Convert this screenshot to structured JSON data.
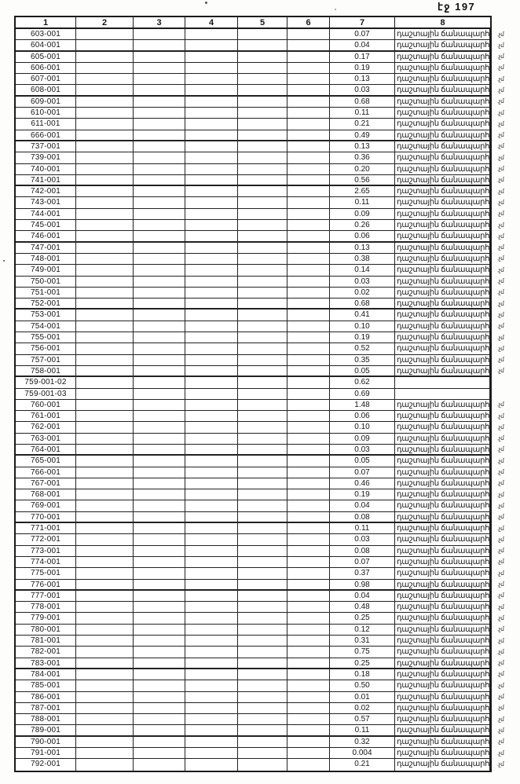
{
  "page": {
    "number_label": "էջ 197"
  },
  "table": {
    "headers": [
      "1",
      "2",
      "3",
      "4",
      "5",
      "6",
      "7",
      "8"
    ],
    "land_use_text": "դաշտային ճանապարհ",
    "margin_note_text": ".չմ",
    "rows": [
      {
        "id": "603-001",
        "value": "0.07",
        "label": "դաշտային ճանապարհ",
        "note": ".չմ"
      },
      {
        "id": "604-001",
        "value": "0.04",
        "label": "դաշտային ճանապարհ",
        "note": ".չմ"
      },
      {
        "id": "605-001",
        "value": "0.17",
        "label": "դաշտային ճանապարհ",
        "note": ".չմ"
      },
      {
        "id": "606-001",
        "value": "0.19",
        "label": "դաշտային ճանապարհ",
        "note": ".չմ"
      },
      {
        "id": "607-001",
        "value": "0.13",
        "label": "դաշտային ճանապարհ",
        "note": ".չմ"
      },
      {
        "id": "608-001",
        "value": "0.03",
        "label": "դաշտային ճանապարհ",
        "note": ".չմ"
      },
      {
        "id": "609-001",
        "value": "0.68",
        "label": "դաշտային ճանապարհ",
        "note": ".չմ"
      },
      {
        "id": "610-001",
        "value": "0.11",
        "label": "դաշտային ճանապարհ",
        "note": ".չմ"
      },
      {
        "id": "611-001",
        "value": "0.21",
        "label": "դաշտային ճանապարհ",
        "note": ".չմ"
      },
      {
        "id": "666-001",
        "value": "0.49",
        "label": "դաշտային ճանապարհ",
        "note": ".չմ"
      },
      {
        "id": "737-001",
        "value": "0.13",
        "label": "դաշտային ճանապարհ",
        "note": ".չմ"
      },
      {
        "id": "739-001",
        "value": "0.36",
        "label": "դաշտային ճանապարհ",
        "note": ".չմ"
      },
      {
        "id": "740-001",
        "value": "0.20",
        "label": "դաշտային ճանապարհ",
        "note": ".չմ"
      },
      {
        "id": "741-001",
        "value": "0.56",
        "label": "դաշտային ճանապարհ",
        "note": ".չմ"
      },
      {
        "id": "742-001",
        "value": "2.65",
        "label": "դաշտային ճանապարհ",
        "note": ".չմ"
      },
      {
        "id": "743-001",
        "value": "0.11",
        "label": "դաշտային ճանապարհ",
        "note": ".չմ"
      },
      {
        "id": "744-001",
        "value": "0.09",
        "label": "դաշտային ճանապարհ",
        "note": ".չմ"
      },
      {
        "id": "745-001",
        "value": "0.26",
        "label": "դաշտային ճանապարհ",
        "note": ".չմ"
      },
      {
        "id": "746-001",
        "value": "0.06",
        "label": "դաշտային ճանապարհ",
        "note": ".չմ"
      },
      {
        "id": "747-001",
        "value": "0.13",
        "label": "դաշտային ճանապարհ",
        "note": ".չմ"
      },
      {
        "id": "748-001",
        "value": "0.38",
        "label": "դաշտային ճանապարհ",
        "note": ".չմ"
      },
      {
        "id": "749-001",
        "value": "0.14",
        "label": "դաշտային ճանապարհ",
        "note": ".չմ"
      },
      {
        "id": "750-001",
        "value": "0.03",
        "label": "դաշտային ճանապարհ",
        "note": ".չմ"
      },
      {
        "id": "751-001",
        "value": "0.02",
        "label": "դաշտային ճանապարհ",
        "note": ".չմ"
      },
      {
        "id": "752-001",
        "value": "0.68",
        "label": "դաշտային ճանապարհ",
        "note": ".չմ"
      },
      {
        "id": "753-001",
        "value": "0.41",
        "label": "դաշտային ճանապարհ",
        "note": ".չմ"
      },
      {
        "id": "754-001",
        "value": "0.10",
        "label": "դաշտային ճանապարհ",
        "note": ".չմ"
      },
      {
        "id": "755-001",
        "value": "0.19",
        "label": "դաշտային ճանապարհ",
        "note": ".չմ"
      },
      {
        "id": "756-001",
        "value": "0.52",
        "label": "դաշտային ճանապարհ",
        "note": ".չմ"
      },
      {
        "id": "757-001",
        "value": "0.35",
        "label": "դաշտային ճանապարհ",
        "note": ".չմ"
      },
      {
        "id": "758-001",
        "value": "0.05",
        "label": "դաշտային ճանապարհ",
        "note": ".չմ"
      },
      {
        "id": "759-001-02",
        "value": "0.62",
        "label": "",
        "note": ""
      },
      {
        "id": "759-001-03",
        "value": "0.69",
        "label": "",
        "note": ""
      },
      {
        "id": "760-001",
        "value": "1.48",
        "label": "դաշտային ճանապարհ",
        "note": ".չմ"
      },
      {
        "id": "761-001",
        "value": "0.06",
        "label": "դաշտային ճանապարհ",
        "note": ".չմ"
      },
      {
        "id": "762-001",
        "value": "0.10",
        "label": "դաշտային ճանապարհ",
        "note": ".չմ"
      },
      {
        "id": "763-001",
        "value": "0.09",
        "label": "դաշտային ճանապարհ",
        "note": ".չմ"
      },
      {
        "id": "764-001",
        "value": "0.03",
        "label": "դաշտային ճանապարհ",
        "note": ".չմ"
      },
      {
        "id": "765-001",
        "value": "0.05",
        "label": "դաշտային ճանապարհ",
        "note": ".չմ"
      },
      {
        "id": "766-001",
        "value": "0.07",
        "label": "դաշտային ճանապարհ",
        "note": ".չմ"
      },
      {
        "id": "767-001",
        "value": "0.46",
        "label": "դաշտային ճանապարհ",
        "note": ".չմ"
      },
      {
        "id": "768-001",
        "value": "0.19",
        "label": "դաշտային ճանապարհ",
        "note": ".չմ"
      },
      {
        "id": "769-001",
        "value": "0.04",
        "label": "դաշտային ճանապարհ",
        "note": ".չմ"
      },
      {
        "id": "770-001",
        "value": "0.08",
        "label": "դաշտային ճանապարհ",
        "note": ".չմ"
      },
      {
        "id": "771-001",
        "value": "0.11",
        "label": "դաշտային ճանապարհ",
        "note": ".չմ"
      },
      {
        "id": "772-001",
        "value": "0.03",
        "label": "դաշտային ճանապարհ",
        "note": ".չմ"
      },
      {
        "id": "773-001",
        "value": "0.08",
        "label": "դաշտային ճանապարհ",
        "note": ".չմ"
      },
      {
        "id": "774-001",
        "value": "0.07",
        "label": "դաշտային ճանապարհ",
        "note": ".չմ"
      },
      {
        "id": "775-001",
        "value": "0.37",
        "label": "դաշտային ճանապարհ",
        "note": ".չմ"
      },
      {
        "id": "776-001",
        "value": "0.98",
        "label": "դաշտային ճանապարհ",
        "note": ".չմ"
      },
      {
        "id": "777-001",
        "value": "0.04",
        "label": "դաշտային ճանապարհ",
        "note": ".չմ"
      },
      {
        "id": "778-001",
        "value": "0.48",
        "label": "դաշտային ճանապարհ",
        "note": ".չմ"
      },
      {
        "id": "779-001",
        "value": "0.25",
        "label": "դաշտային ճանապարհ",
        "note": ".չմ"
      },
      {
        "id": "780-001",
        "value": "0.12",
        "label": "դաշտային ճանապարհ",
        "note": ".չմ"
      },
      {
        "id": "781-001",
        "value": "0.31",
        "label": "դաշտային ճանապարհ",
        "note": ".չմ"
      },
      {
        "id": "782-001",
        "value": "0.75",
        "label": "դաշտային ճանապարհ",
        "note": ".չմ"
      },
      {
        "id": "783-001",
        "value": "0.25",
        "label": "դաշտային ճանապարհ",
        "note": ".չմ"
      },
      {
        "id": "784-001",
        "value": "0.18",
        "label": "դաշտային ճանապարհ",
        "note": ".չմ"
      },
      {
        "id": "785-001",
        "value": "0.50",
        "label": "դաշտային ճանապարհ",
        "note": ".չմ"
      },
      {
        "id": "786-001",
        "value": "0.01",
        "label": "դաշտային ճանապարհ",
        "note": ".չմ"
      },
      {
        "id": "787-001",
        "value": "0.02",
        "label": "դաշտային ճանապարհ",
        "note": ".չմ"
      },
      {
        "id": "788-001",
        "value": "0.57",
        "label": "դաշտային ճանապարհ",
        "note": ".չմ"
      },
      {
        "id": "789-001",
        "value": "0.11",
        "label": "դաշտային ճանապարհ",
        "note": ".չմ"
      },
      {
        "id": "790-001",
        "value": "0.32",
        "label": "դաշտային ճանապարհ",
        "note": ".չմ"
      },
      {
        "id": "791-001",
        "value": "0.004",
        "label": "դաշտային ճանապարհ",
        "note": ".չմ"
      },
      {
        "id": "792-001",
        "value": "0.21",
        "label": "դաշտային ճանապարհ",
        "note": ".չմ"
      }
    ]
  }
}
